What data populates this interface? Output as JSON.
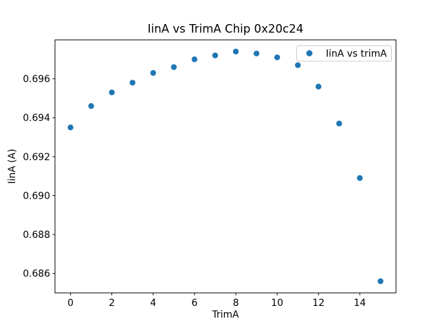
{
  "window": {
    "background_color": "#ffffff"
  },
  "chart_data": {
    "type": "scatter",
    "title": "IinA vs TrimA Chip 0x20c24",
    "xlabel": "TrimA",
    "ylabel": "IinA (A)",
    "legend": {
      "label": "IinA vs trimA",
      "position": "upper right",
      "marker_color": "#1f77b4",
      "border_color": "#cccccc"
    },
    "x": [
      0,
      1,
      2,
      3,
      4,
      5,
      6,
      7,
      8,
      9,
      10,
      11,
      12,
      13,
      14,
      15
    ],
    "y": [
      0.6935,
      0.6946,
      0.6953,
      0.6958,
      0.6963,
      0.6966,
      0.697,
      0.6972,
      0.6974,
      0.6973,
      0.6971,
      0.6967,
      0.6956,
      0.6937,
      0.6909,
      0.6856
    ],
    "xlim": [
      -0.75,
      15.75
    ],
    "ylim": [
      0.685,
      0.698
    ],
    "xticks": [
      0,
      2,
      4,
      6,
      8,
      10,
      12,
      14
    ],
    "yticks": [
      0.686,
      0.688,
      0.69,
      0.692,
      0.694,
      0.696
    ],
    "ytick_decimals": 3,
    "marker_color": "#1f77b4",
    "axis_color": "#000000",
    "grid": false
  }
}
